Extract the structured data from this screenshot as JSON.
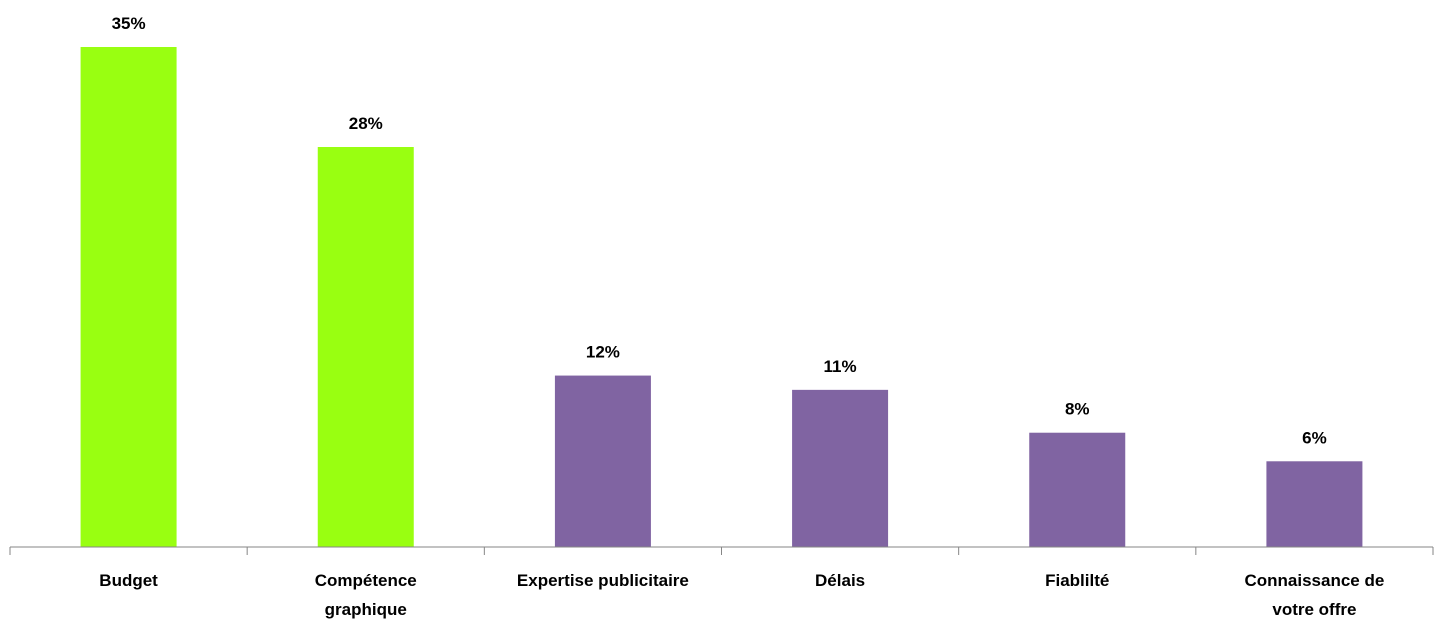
{
  "chart_data": {
    "type": "bar",
    "categories": [
      "Budget",
      "Compétence graphique",
      "Expertise publicitaire",
      "Délais",
      "Fiablilté",
      "Connaissance de votre offre"
    ],
    "values": [
      35,
      28,
      12,
      11,
      8,
      6
    ],
    "value_labels": [
      "35%",
      "28%",
      "12%",
      "11%",
      "8%",
      "6%"
    ],
    "colors": [
      "#99ff11",
      "#99ff11",
      "#8064a2",
      "#8064a2",
      "#8064a2",
      "#8064a2"
    ]
  }
}
